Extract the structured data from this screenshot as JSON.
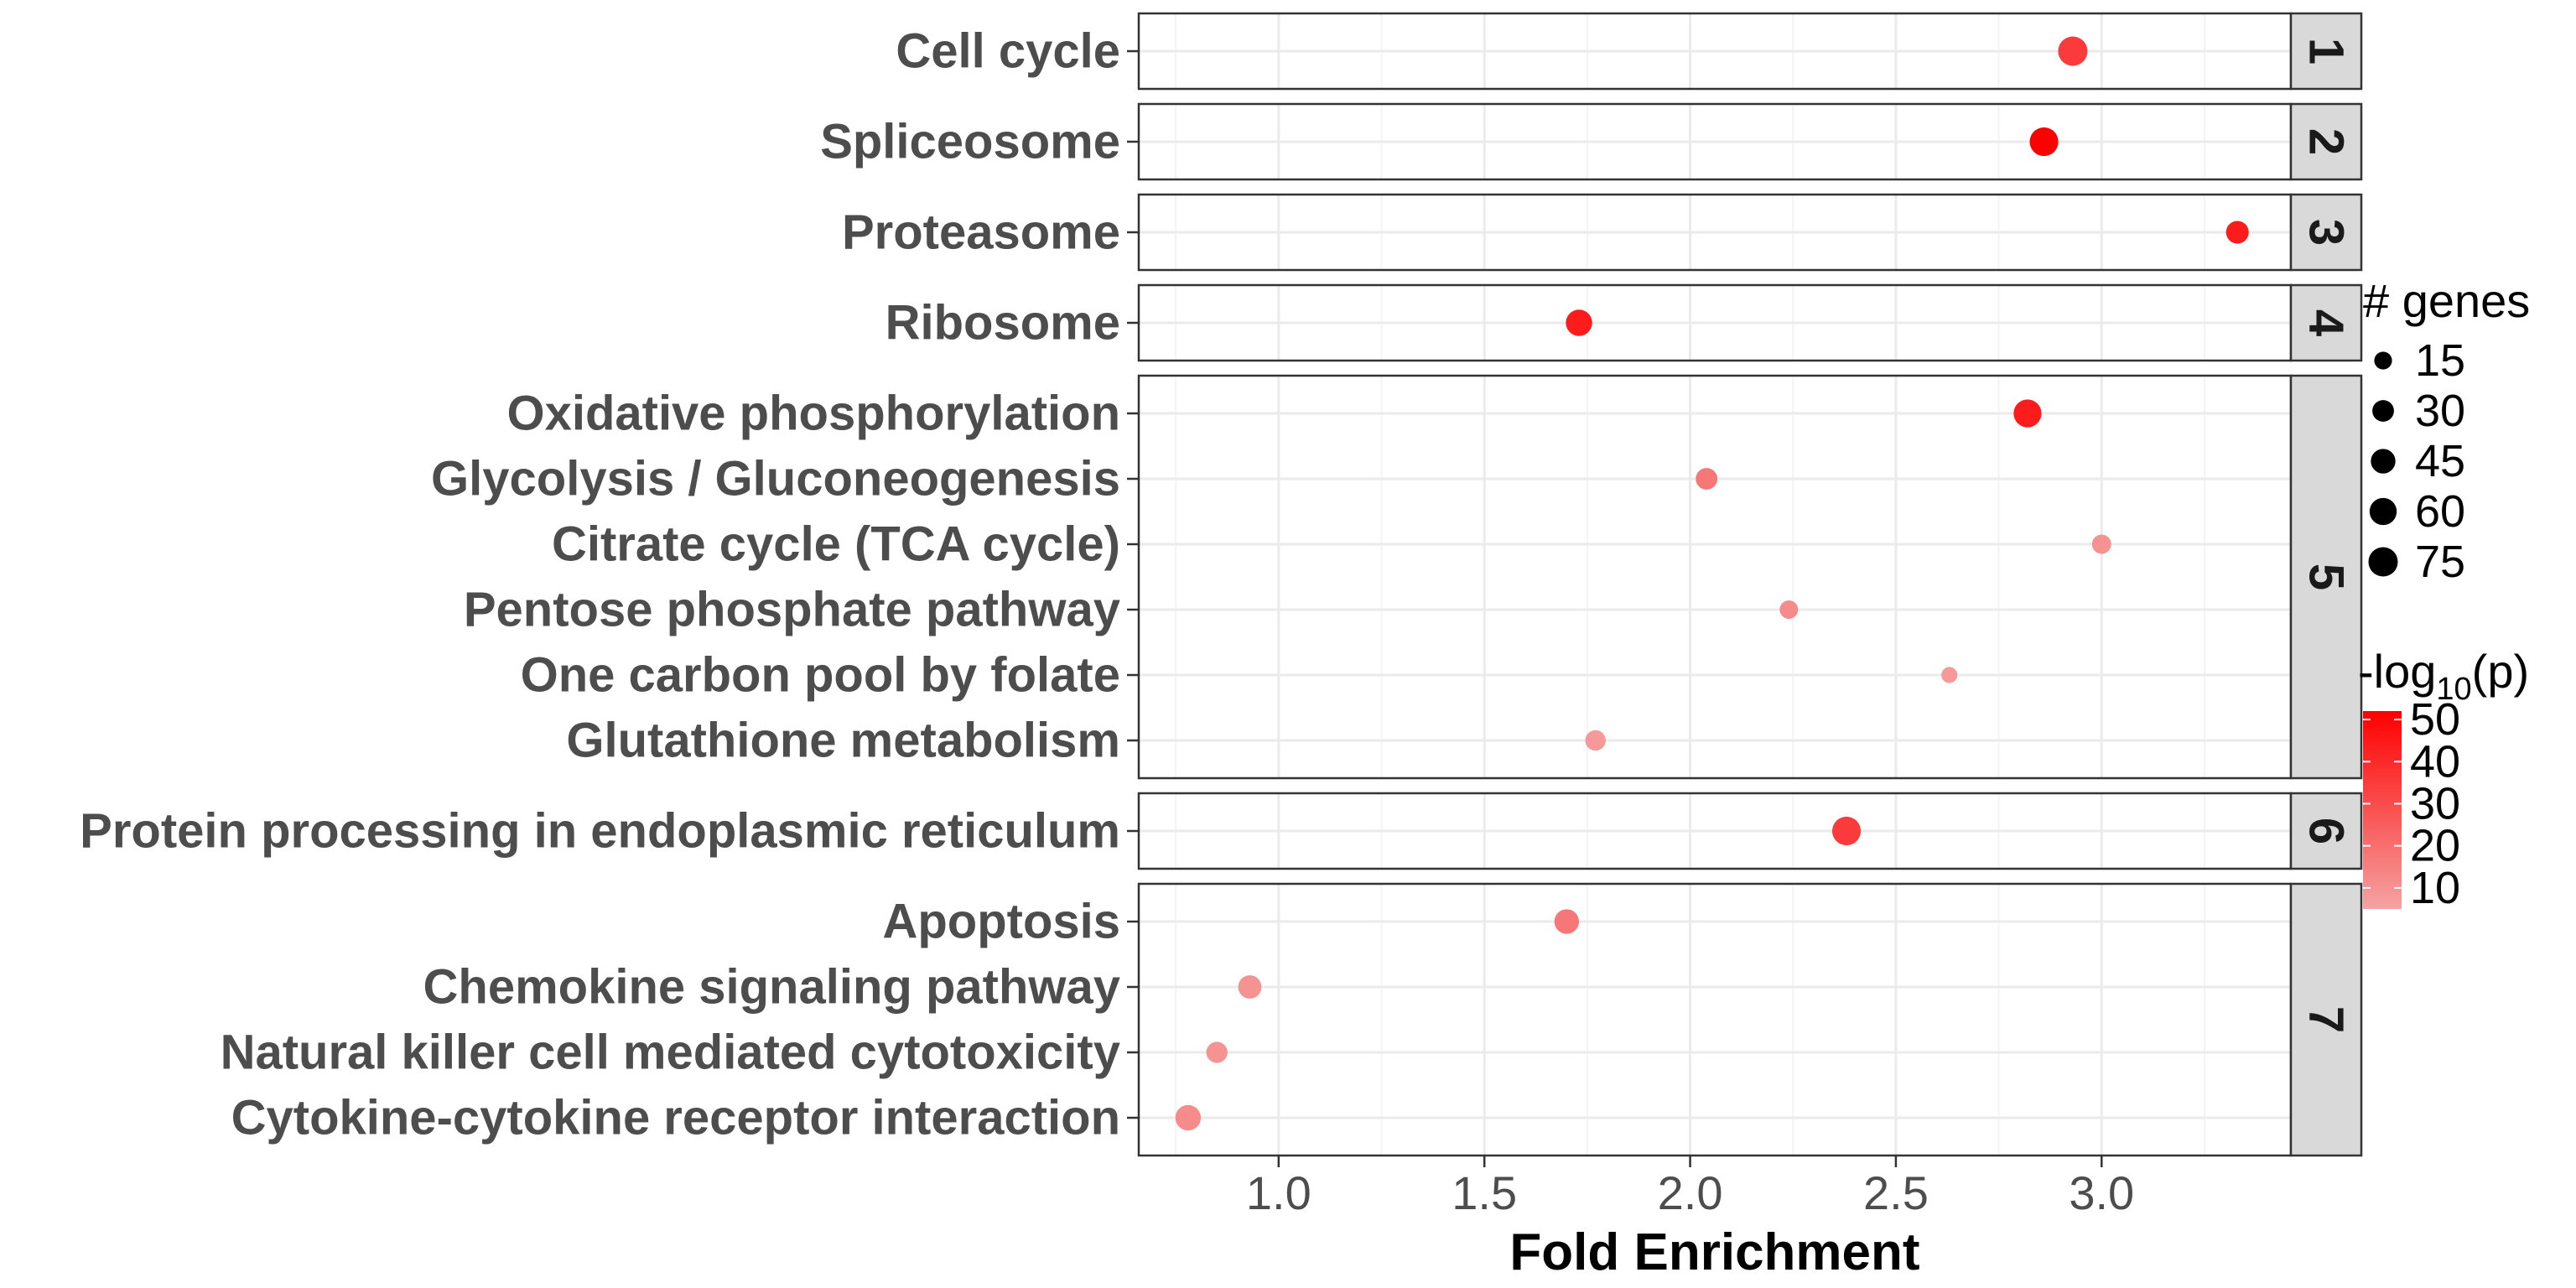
{
  "chart_data": {
    "type": "scatter",
    "xlabel": "Fold Enrichment",
    "ylabel": "",
    "xlim": [
      0.66,
      3.46
    ],
    "x_ticks": [
      1.0,
      1.5,
      2.0,
      2.5,
      3.0
    ],
    "x_tick_labels": [
      "1.0",
      "1.5",
      "2.0",
      "2.5",
      "3.0"
    ],
    "grid": true,
    "facet_by": "cluster",
    "facets": [
      {
        "label": "1",
        "rows": [
          {
            "term": "Cell cycle",
            "fold_enrichment": 2.93,
            "genes": 75,
            "neg_log10_p": 35
          }
        ]
      },
      {
        "label": "2",
        "rows": [
          {
            "term": "Spliceosome",
            "fold_enrichment": 2.86,
            "genes": 70,
            "neg_log10_p": 52
          }
        ]
      },
      {
        "label": "3",
        "rows": [
          {
            "term": "Proteasome",
            "fold_enrichment": 3.33,
            "genes": 35,
            "neg_log10_p": 44
          }
        ]
      },
      {
        "label": "4",
        "rows": [
          {
            "term": "Ribosome",
            "fold_enrichment": 1.73,
            "genes": 55,
            "neg_log10_p": 44
          }
        ]
      },
      {
        "label": "5",
        "rows": [
          {
            "term": "Oxidative phosphorylation",
            "fold_enrichment": 2.82,
            "genes": 65,
            "neg_log10_p": 44
          },
          {
            "term": "Glycolysis / Gluconeogenesis",
            "fold_enrichment": 2.04,
            "genes": 30,
            "neg_log10_p": 18
          },
          {
            "term": "Citrate cycle (TCA cycle)",
            "fold_enrichment": 3.0,
            "genes": 20,
            "neg_log10_p": 10
          },
          {
            "term": "Pentose phosphate pathway",
            "fold_enrichment": 2.24,
            "genes": 17,
            "neg_log10_p": 12
          },
          {
            "term": "One carbon pool by folate",
            "fold_enrichment": 2.63,
            "genes": 10,
            "neg_log10_p": 8
          },
          {
            "term": "Glutathione metabolism",
            "fold_enrichment": 1.77,
            "genes": 25,
            "neg_log10_p": 8
          }
        ]
      },
      {
        "label": "6",
        "rows": [
          {
            "term": "Protein processing in endoplasmic reticulum",
            "fold_enrichment": 2.38,
            "genes": 70,
            "neg_log10_p": 35
          }
        ]
      },
      {
        "label": "7",
        "rows": [
          {
            "term": "Apoptosis",
            "fold_enrichment": 1.7,
            "genes": 45,
            "neg_log10_p": 18
          },
          {
            "term": "Chemokine signaling pathway",
            "fold_enrichment": 0.93,
            "genes": 38,
            "neg_log10_p": 10
          },
          {
            "term": "Natural killer cell mediated cytotoxicity",
            "fold_enrichment": 0.85,
            "genes": 28,
            "neg_log10_p": 10
          },
          {
            "term": "Cytokine-cytokine receptor interaction",
            "fold_enrichment": 0.78,
            "genes": 50,
            "neg_log10_p": 12
          }
        ]
      }
    ],
    "size_legend": {
      "title": "# genes",
      "values": [
        15,
        30,
        45,
        60,
        75
      ],
      "labels": [
        "15",
        "30",
        "45",
        "60",
        "75"
      ]
    },
    "color_legend": {
      "title_prefix": "-log",
      "title_sub": "10",
      "title_suffix": "(p)",
      "range": [
        5,
        52
      ],
      "values": [
        50,
        40,
        30,
        20,
        10
      ],
      "labels": [
        "50",
        "40",
        "30",
        "20",
        "10"
      ],
      "low_color": "#f4a3a3",
      "high_color": "#ff0000"
    },
    "colors": {
      "grid": "#ebebeb",
      "panel_border": "#333333",
      "strip_fill": "#d9d9d9",
      "label_text": "#4d4d4d"
    }
  }
}
